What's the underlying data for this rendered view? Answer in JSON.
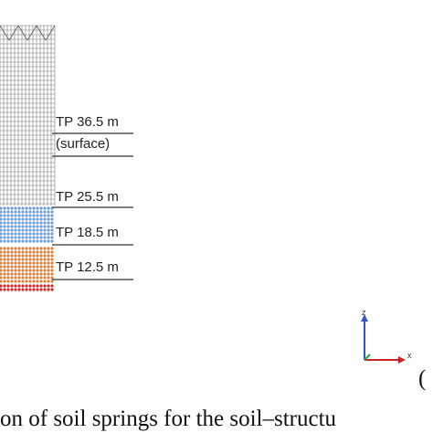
{
  "figure": {
    "levels": [
      {
        "label": "TP 36.5 m",
        "note": "(surface)"
      },
      {
        "label": "TP 25.5 m"
      },
      {
        "label": "TP 18.5 m"
      },
      {
        "label": "TP 12.5 m"
      }
    ],
    "axes": {
      "z": "z",
      "x": "x"
    },
    "panel_mark": "(",
    "caption": "on of soil springs for the soil–structu"
  }
}
